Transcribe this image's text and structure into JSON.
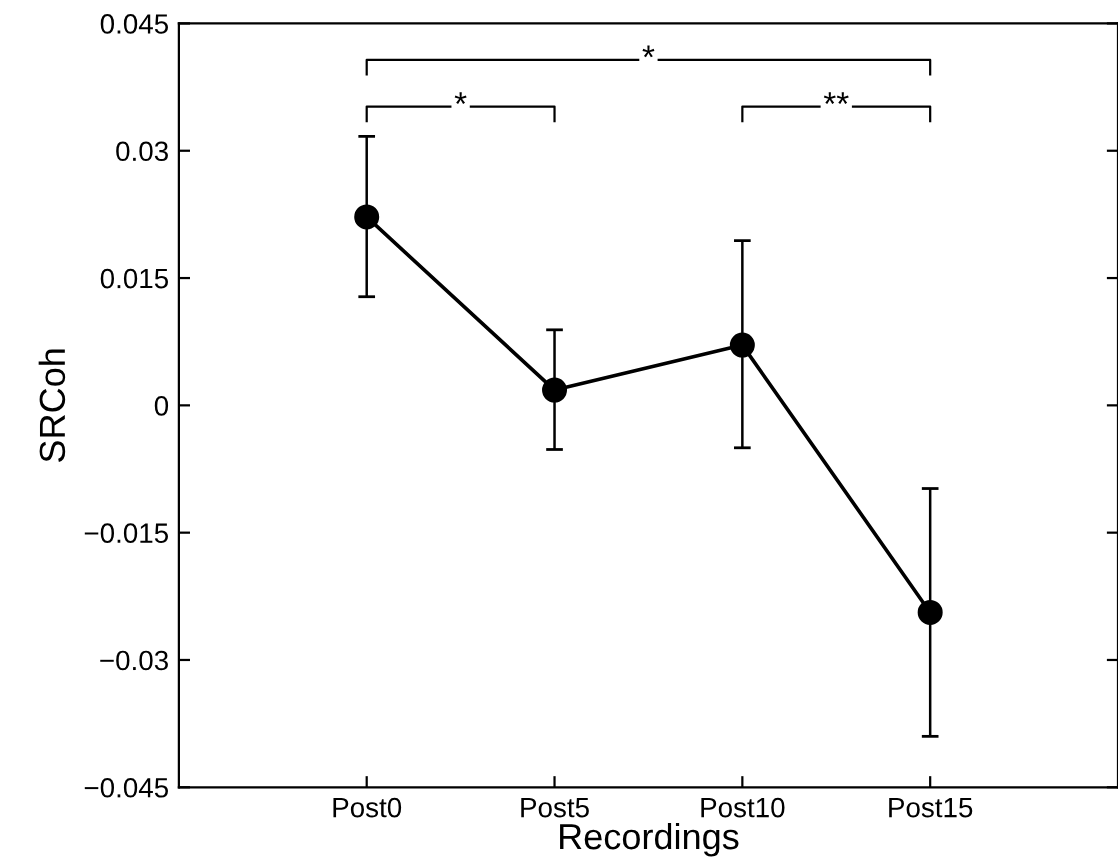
{
  "chart_data": {
    "type": "line",
    "xlabel": "Recordings",
    "ylabel": "SRCoh",
    "categories": [
      "Post0",
      "Post5",
      "Post10",
      "Post15"
    ],
    "series": [
      {
        "color": "#000000",
        "values": [
          0.0222,
          0.0018,
          0.0071,
          -0.0244
        ],
        "errors": [
          [
            0.0128,
            0.0317
          ],
          [
            -0.0052,
            0.0089
          ],
          [
            -0.005,
            0.0194
          ],
          [
            -0.039,
            -0.0098
          ]
        ]
      }
    ],
    "marker": "circle",
    "line_style": "solid",
    "grid": false,
    "legend": false,
    "ylim": [
      -0.045,
      0.045
    ],
    "yticks": [
      {
        "value": -0.045,
        "label": "−0.045"
      },
      {
        "value": -0.03,
        "label": "−0.03"
      },
      {
        "value": -0.015,
        "label": "−0.015"
      },
      0,
      0.015,
      0.03,
      0.045
    ],
    "annotations": [
      "*",
      "*",
      "**"
    ]
  }
}
